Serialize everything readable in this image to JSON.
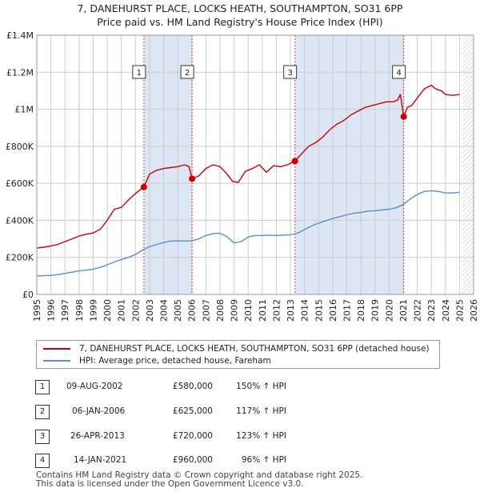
{
  "title_line1": "7, DANEHURST PLACE, LOCKS HEATH, SOUTHAMPTON, SO31 6PP",
  "title_line2": "Price paid vs. HM Land Registry's House Price Index (HPI)",
  "legend": {
    "property_label": "7, DANEHURST PLACE, LOCKS HEATH, SOUTHAMPTON, SO31 6PP (detached house)",
    "hpi_label": "HPI: Average price, detached house, Fareham"
  },
  "colors": {
    "property": "#cc0000",
    "hpi": "#5b8fc7",
    "shade": "#dde6f5",
    "grid": "#cccccc"
  },
  "transactions": [
    {
      "num": "1",
      "date": "09-AUG-2002",
      "price": "£580,000",
      "hpi": "150% ↑ HPI"
    },
    {
      "num": "2",
      "date": "06-JAN-2006",
      "price": "£625,000",
      "hpi": "117% ↑ HPI"
    },
    {
      "num": "3",
      "date": "26-APR-2013",
      "price": "£720,000",
      "hpi": "123% ↑ HPI"
    },
    {
      "num": "4",
      "date": "14-JAN-2021",
      "price": "£960,000",
      "hpi": "96% ↑ HPI"
    }
  ],
  "footer": {
    "line1": "Contains HM Land Registry data © Crown copyright and database right 2025.",
    "line2": "This data is licensed under the Open Government Licence v3.0."
  },
  "chart_data": {
    "type": "line",
    "title": "7, DANEHURST PLACE, LOCKS HEATH, SOUTHAMPTON, SO31 6PP — Price paid vs. HM Land Registry's House Price Index (HPI)",
    "xlabel": "",
    "ylabel": "",
    "xlim": [
      1995,
      2026
    ],
    "ylim": [
      0,
      1400000
    ],
    "y_ticks": [
      0,
      200000,
      400000,
      600000,
      800000,
      1000000,
      1200000,
      1400000
    ],
    "y_tick_labels": [
      "£0",
      "£200K",
      "£400K",
      "£600K",
      "£800K",
      "£1M",
      "£1.2M",
      "£1.4M"
    ],
    "x_ticks": [
      1995,
      1996,
      1997,
      1998,
      1999,
      2000,
      2001,
      2002,
      2003,
      2004,
      2005,
      2006,
      2007,
      2008,
      2009,
      2010,
      2011,
      2012,
      2013,
      2014,
      2015,
      2016,
      2017,
      2018,
      2019,
      2020,
      2021,
      2022,
      2023,
      2024,
      2025,
      2026
    ],
    "x_tick_labels": [
      "1995",
      "1996",
      "1997",
      "1998",
      "1999",
      "2000",
      "2001",
      "2002",
      "2003",
      "2004",
      "2005",
      "2006",
      "2007",
      "2008",
      "2009",
      "2010",
      "2011",
      "2012",
      "2013",
      "2014",
      "2015",
      "2016",
      "2017",
      "2018",
      "2019",
      "2020",
      "2021",
      "2022",
      "2023",
      "2024",
      "2025",
      "2026"
    ],
    "shaded_periods": [
      [
        2002.6,
        2006.02
      ],
      [
        2013.32,
        2021.04
      ]
    ],
    "forecast_hatch_from": 2025.2,
    "sales": [
      {
        "label": "1",
        "x": 2002.6,
        "y": 580000
      },
      {
        "label": "2",
        "x": 2006.02,
        "y": 625000
      },
      {
        "label": "3",
        "x": 2013.32,
        "y": 720000
      },
      {
        "label": "4",
        "x": 2021.04,
        "y": 960000
      }
    ],
    "series": [
      {
        "name": "7, DANEHURST PLACE, LOCKS HEATH, SOUTHAMPTON, SO31 6PP (detached house)",
        "color": "#cc0000",
        "x": [
          1995.0,
          1995.5,
          1996.0,
          1996.5,
          1997.0,
          1997.5,
          1998.0,
          1998.5,
          1999.0,
          1999.5,
          2000.0,
          2000.5,
          2001.0,
          2001.5,
          2002.0,
          2002.5,
          2002.6,
          2003.0,
          2003.5,
          2004.0,
          2004.5,
          2005.0,
          2005.5,
          2005.8,
          2006.02,
          2006.5,
          2007.0,
          2007.5,
          2008.0,
          2008.5,
          2008.9,
          2009.3,
          2009.8,
          2010.3,
          2010.8,
          2011.3,
          2011.8,
          2012.3,
          2012.8,
          2013.32,
          2013.8,
          2014.3,
          2014.8,
          2015.3,
          2015.8,
          2016.3,
          2016.8,
          2017.3,
          2017.8,
          2018.3,
          2018.8,
          2019.3,
          2019.8,
          2020.3,
          2020.6,
          2020.8,
          2021.04,
          2021.3,
          2021.6,
          2022.0,
          2022.5,
          2023.0,
          2023.3,
          2023.7,
          2024.0,
          2024.5,
          2025.0
        ],
        "y": [
          250000,
          255000,
          262000,
          270000,
          285000,
          300000,
          315000,
          325000,
          332000,
          352000,
          400000,
          460000,
          470000,
          510000,
          545000,
          575000,
          580000,
          650000,
          670000,
          680000,
          685000,
          690000,
          700000,
          690000,
          625000,
          640000,
          680000,
          700000,
          690000,
          650000,
          610000,
          605000,
          665000,
          680000,
          700000,
          660000,
          695000,
          690000,
          700000,
          720000,
          760000,
          800000,
          820000,
          850000,
          890000,
          920000,
          940000,
          970000,
          990000,
          1010000,
          1020000,
          1030000,
          1040000,
          1040000,
          1050000,
          1080000,
          960000,
          1010000,
          1020000,
          1060000,
          1110000,
          1130000,
          1110000,
          1100000,
          1080000,
          1075000,
          1080000
        ]
      },
      {
        "name": "HPI: Average price, detached house, Fareham",
        "color": "#5b8fc7",
        "x": [
          1995.0,
          1995.5,
          1996.0,
          1996.5,
          1997.0,
          1997.5,
          1998.0,
          1998.5,
          1999.0,
          1999.5,
          2000.0,
          2000.5,
          2001.0,
          2001.5,
          2002.0,
          2002.5,
          2003.0,
          2003.5,
          2004.0,
          2004.5,
          2005.0,
          2005.5,
          2006.0,
          2006.5,
          2007.0,
          2007.5,
          2008.0,
          2008.5,
          2009.0,
          2009.5,
          2010.0,
          2010.5,
          2011.0,
          2011.5,
          2012.0,
          2012.5,
          2013.0,
          2013.5,
          2014.0,
          2014.5,
          2015.0,
          2015.5,
          2016.0,
          2016.5,
          2017.0,
          2017.5,
          2018.0,
          2018.5,
          2019.0,
          2019.5,
          2020.0,
          2020.5,
          2021.0,
          2021.5,
          2022.0,
          2022.5,
          2023.0,
          2023.5,
          2024.0,
          2024.5,
          2025.0
        ],
        "y": [
          100000,
          101000,
          103000,
          107000,
          113000,
          120000,
          127000,
          131000,
          136000,
          146000,
          160000,
          175000,
          188000,
          200000,
          215000,
          240000,
          257000,
          270000,
          280000,
          288000,
          290000,
          288000,
          290000,
          300000,
          318000,
          328000,
          330000,
          312000,
          278000,
          285000,
          310000,
          318000,
          318000,
          320000,
          318000,
          320000,
          322000,
          330000,
          350000,
          370000,
          385000,
          398000,
          410000,
          420000,
          430000,
          438000,
          443000,
          450000,
          452000,
          456000,
          460000,
          468000,
          485000,
          515000,
          540000,
          556000,
          560000,
          556000,
          548000,
          548000,
          552000
        ]
      }
    ]
  }
}
